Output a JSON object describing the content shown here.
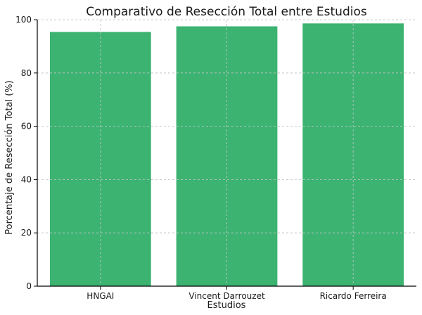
{
  "chart_data": {
    "type": "bar",
    "title": "Comparativo de Resección Total entre Estudios",
    "xlabel": "Estudios",
    "ylabel": "Porcentaje de Resección Total (%)",
    "categories": [
      "HNGAI",
      "Vincent Darrouzet",
      "Ricardo Ferreira"
    ],
    "values": [
      95.4,
      97.5,
      98.6
    ],
    "ylim": [
      0,
      100
    ],
    "yticks": [
      0,
      20,
      40,
      60,
      80,
      100
    ],
    "grid": true,
    "bar_color": "#3cb371"
  }
}
